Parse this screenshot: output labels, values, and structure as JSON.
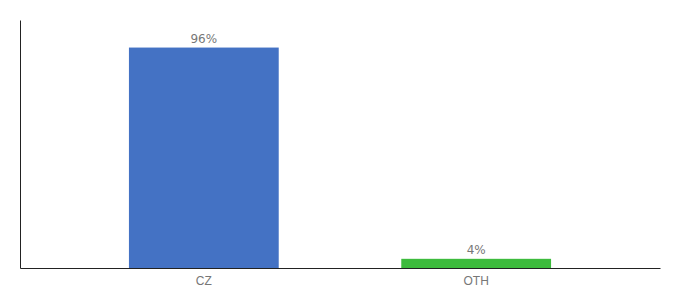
{
  "chart_data": {
    "type": "bar",
    "categories": [
      "CZ",
      "OTH"
    ],
    "values": [
      96,
      4
    ],
    "value_labels": [
      "96%",
      "4%"
    ],
    "colors": [
      "#4472c4",
      "#3dbb3d"
    ],
    "ylim": [
      0,
      108
    ],
    "grid": false,
    "data_labels": true,
    "tick_labels": "x"
  }
}
